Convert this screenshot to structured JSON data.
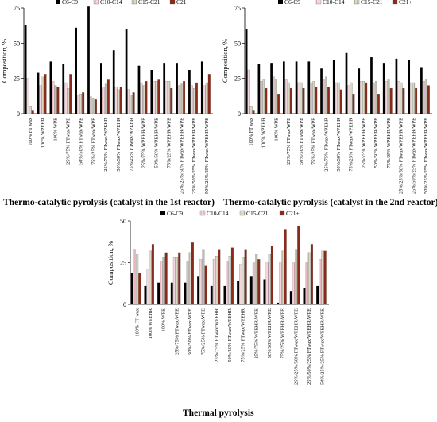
{
  "colors": {
    "C6-C9": "#000000",
    "C10-C14": "#f3d6dd",
    "C15-C21": "#d9d9c9",
    "C21+": "#8b2a1a"
  },
  "chart_data": [
    {
      "type": "bar",
      "title": "",
      "caption": "Thermo-catalytic pyrolysis (catalyst in the 1st reactor)",
      "ylabel": "Composition, %",
      "ylim": [
        0,
        75
      ],
      "yticks": [
        0,
        25,
        50,
        75
      ],
      "legend": "top",
      "categories": [
        "100% FT wax",
        "100% WPEHR",
        "100% WPE",
        "25%/75% FTwax/WPE",
        "50%/50% FTwax/WPE",
        "75%/25% FTwax/WPE",
        "25%/75% FTwax/WPEHR",
        "50%/50% FTwax/WPEHR",
        "75%/25% FTwax/WPEHR",
        "25%/75% WPEHR/WPE",
        "50%/50% WPEHR/WPE",
        "75%/25% WPEHR/WPE",
        "25%/25%/50% FTwax/WPEHR/WPE",
        "25%/50%/25% FTwax/WPEHR/WPE",
        "50%/25%/25% FTwax/WPEHR/WPE"
      ],
      "series": [
        {
          "name": "C6-C9",
          "values": [
            63,
            29,
            37,
            35,
            61,
            76,
            36,
            45,
            60,
            34,
            31,
            36,
            36,
            31,
            37
          ]
        },
        {
          "name": "C10-C14",
          "values": [
            25,
            20,
            23,
            22,
            13,
            12,
            19,
            19,
            17,
            22,
            23,
            23,
            20,
            20,
            20
          ]
        },
        {
          "name": "C15-C21",
          "values": [
            5,
            26,
            20,
            18,
            14,
            11,
            21,
            17,
            13,
            20,
            23,
            23,
            21,
            18,
            22
          ]
        },
        {
          "name": "C21+",
          "values": [
            2,
            28,
            19,
            28,
            15,
            10,
            24,
            19,
            15,
            23,
            24,
            18,
            23,
            22,
            28
          ]
        }
      ]
    },
    {
      "type": "bar",
      "title": "",
      "caption": "Thermo-catalytic pyrolysis (catalyst in the 2nd reactor)",
      "ylabel": "Composition, %",
      "ylim": [
        0,
        75
      ],
      "yticks": [
        0,
        25,
        50,
        75
      ],
      "legend": "top",
      "categories": [
        "100% FT wax",
        "100% WPEHR",
        "100% WPE",
        "25%/75% FTwax/WPE",
        "50%/50% FTwax/WPE",
        "75%/25% FTwax/WPE",
        "25%/75% FTwax/WPEHR",
        "50%/50% FTwax/WPEHR",
        "75%/25% FTwax/WPEHR",
        "25%/75% WPEHR/WPE",
        "50%/50% WPEHR/WPE",
        "75%/25% WPEHR/WPE",
        "25%/25%/50% FTwax/WPEHR/WPE",
        "25%/50%/25% FTwax/WPEHR/WPE",
        "50%/25%/25% FTwax/WPEHR/WPE"
      ],
      "series": [
        {
          "name": "C6-C9",
          "values": [
            60,
            35,
            36,
            37,
            37,
            37,
            32,
            38,
            43,
            32,
            40,
            36,
            39,
            38,
            33
          ]
        },
        {
          "name": "C10-C14",
          "values": [
            31,
            23,
            26,
            24,
            22,
            22,
            24,
            22,
            20,
            23,
            22,
            23,
            23,
            22,
            23
          ]
        },
        {
          "name": "C15-C21",
          "values": [
            5,
            24,
            24,
            22,
            22,
            23,
            26,
            22,
            22,
            23,
            23,
            24,
            22,
            22,
            24
          ]
        },
        {
          "name": "C21+",
          "values": [
            2,
            18,
            14,
            18,
            18,
            19,
            19,
            17,
            14,
            22,
            14,
            18,
            18,
            18,
            20
          ]
        }
      ]
    },
    {
      "type": "bar",
      "title": "",
      "caption": "Thermal pyrolysis",
      "ylabel": "Composition, %",
      "ylim": [
        0,
        50
      ],
      "yticks": [
        0,
        25,
        50
      ],
      "legend": "top",
      "categories": [
        "100% FT wax",
        "100% WPEHR",
        "100% WPE",
        "25%/75% FTwax/WPE",
        "50%/50% FTwax/WPE",
        "75%/25% FTwax/WPE",
        "25%/75% FTwax/WPEHR",
        "50%/50% FTwax/WPEHR",
        "75%/25% FTwax/WPEHR",
        "25%/75% WPEHR/WPE",
        "50%/50% WPEHR/WPE",
        "75%/25% WPEHR/WPE",
        "25%/25%/50% FTwax/WPEHR/WPE",
        "25%/50%/25% FTwax/WPEHR/WPE",
        "50%/25%/25% FTwax/WPEHR/WPE"
      ],
      "series": [
        {
          "name": "C6-C9",
          "values": [
            19,
            11,
            13,
            13,
            13,
            17,
            11,
            11,
            14,
            17,
            15,
            1,
            8,
            10,
            11
          ]
        },
        {
          "name": "C10-C14",
          "values": [
            33,
            21,
            26,
            28,
            26,
            27,
            27,
            26,
            24,
            25,
            25,
            25,
            25,
            25,
            27
          ]
        },
        {
          "name": "C15-C21",
          "values": [
            30,
            32,
            28,
            28,
            31,
            33,
            29,
            29,
            28,
            30,
            30,
            32,
            33,
            31,
            32
          ]
        },
        {
          "name": "C21+",
          "values": [
            19,
            36,
            31,
            31,
            37,
            23,
            33,
            34,
            33,
            27,
            35,
            45,
            47,
            36,
            32
          ]
        }
      ]
    }
  ]
}
